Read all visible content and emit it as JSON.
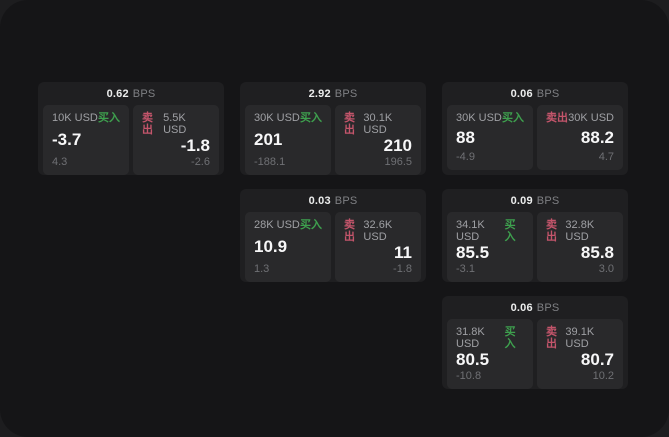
{
  "labels": {
    "bps_unit": "BPS",
    "buy": "买入",
    "sell": "卖出"
  },
  "colors": {
    "buy_accent": "#3EA04E",
    "sell_accent": "#C4556B",
    "window_bg": "#151517",
    "card_bg": "#1f1f21",
    "panel_bg": "#29292b"
  },
  "cards": [
    {
      "bps": "0.62",
      "buy": {
        "amount": "10K USD",
        "value": "-3.7",
        "sub": "4.3"
      },
      "sell": {
        "amount": "5.5K USD",
        "value": "-1.8",
        "sub": "-2.6"
      }
    },
    {
      "bps": "2.92",
      "buy": {
        "amount": "30K USD",
        "value": "201",
        "sub": "-188.1"
      },
      "sell": {
        "amount": "30.1K USD",
        "value": "210",
        "sub": "196.5"
      }
    },
    {
      "bps": "0.06",
      "buy": {
        "amount": "30K USD",
        "value": "88",
        "sub": "-4.9"
      },
      "sell": {
        "amount": "30K USD",
        "value": "88.2",
        "sub": "4.7"
      }
    },
    {
      "bps": "0.03",
      "buy": {
        "amount": "28K USD",
        "value": "10.9",
        "sub": "1.3"
      },
      "sell": {
        "amount": "32.6K USD",
        "value": "11",
        "sub": "-1.8"
      }
    },
    {
      "bps": "0.09",
      "buy": {
        "amount": "34.1K USD",
        "value": "85.5",
        "sub": "-3.1"
      },
      "sell": {
        "amount": "32.8K USD",
        "value": "85.8",
        "sub": "3.0"
      }
    },
    {
      "bps": "0.06",
      "buy": {
        "amount": "31.8K USD",
        "value": "80.5",
        "sub": "-10.8"
      },
      "sell": {
        "amount": "39.1K USD",
        "value": "80.7",
        "sub": "10.2"
      }
    }
  ]
}
